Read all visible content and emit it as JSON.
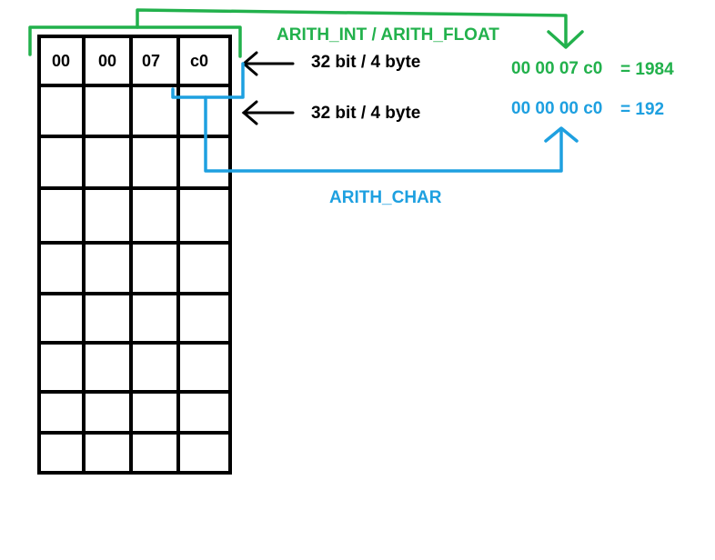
{
  "memory": {
    "row0": [
      "00",
      "00",
      "07",
      "c0"
    ]
  },
  "labels": {
    "int_float": "ARITH_INT / ARITH_FLOAT",
    "char": "ARITH_CHAR",
    "width_row0": "32 bit / 4 byte",
    "width_row1": "32 bit / 4 byte"
  },
  "results": {
    "int_bytes": "00 00 07 c0",
    "int_value": "= 1984",
    "char_bytes": "00 00 00 c0",
    "char_value": "= 192"
  },
  "colors": {
    "grid": "#000000",
    "green": "#22b14c",
    "blue": "#1ea0e0"
  }
}
